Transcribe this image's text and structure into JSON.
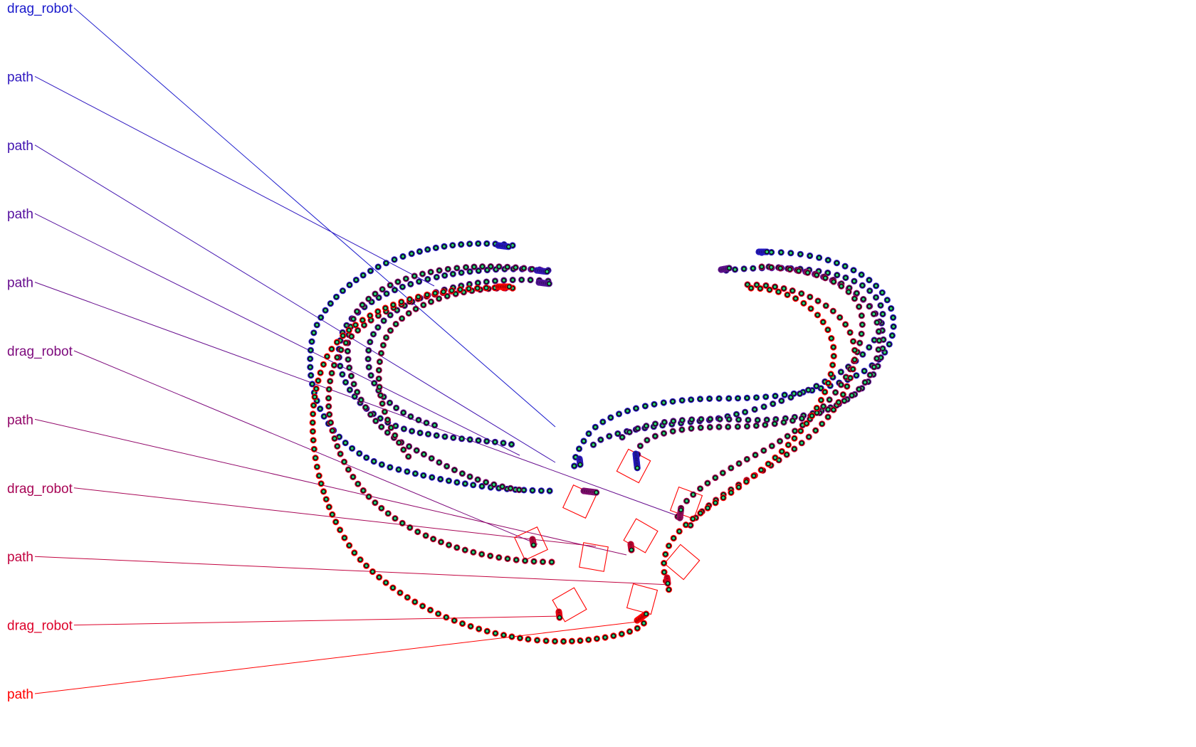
{
  "labels": [
    {
      "text": "drag_robot",
      "color": "#1a1acc"
    },
    {
      "text": "path",
      "color": "#2f18c0"
    },
    {
      "text": "path",
      "color": "#4214b0"
    },
    {
      "text": "path",
      "color": "#55109f"
    },
    {
      "text": "path",
      "color": "#670d8e"
    },
    {
      "text": "drag_robot",
      "color": "#7d0a7d"
    },
    {
      "text": "path",
      "color": "#92086a"
    },
    {
      "text": "drag_robot",
      "color": "#a80656"
    },
    {
      "text": "path",
      "color": "#c20440"
    },
    {
      "text": "drag_robot",
      "color": "#dd022a"
    },
    {
      "text": "path",
      "color": "#ff0000"
    }
  ],
  "colors": {
    "dot_outer": "#0b0b0b",
    "dot_inner": "#2bd17a",
    "marker": "#ff0000",
    "trace_start": "#1a1acc",
    "trace_end": "#ff0000"
  }
}
